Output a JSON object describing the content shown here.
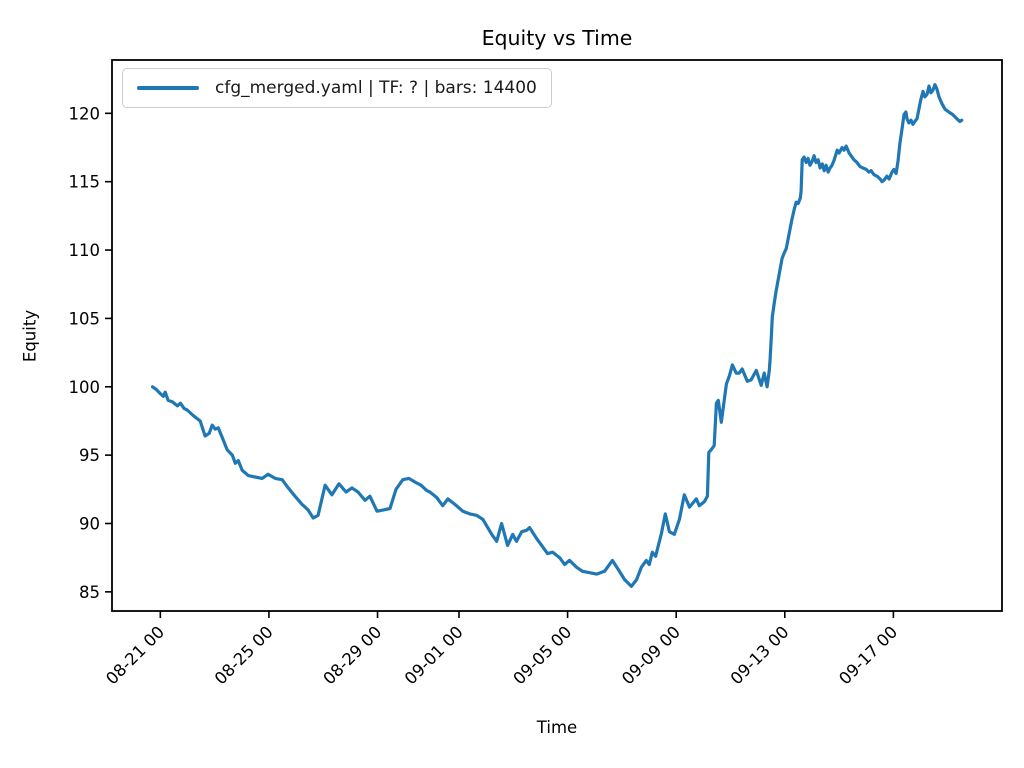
{
  "figure": {
    "background": "#ffffff"
  },
  "chart_data": {
    "type": "line",
    "title": "Equity vs Time",
    "xlabel": "Time",
    "ylabel": "Equity",
    "grid": false,
    "x_unit": "days since 08-21 00:00",
    "xlim": [
      -1.78,
      31.0
    ],
    "ylim": [
      83.6,
      123.9
    ],
    "y_ticks": [
      85,
      90,
      95,
      100,
      105,
      110,
      115,
      120
    ],
    "x_ticks": [
      {
        "pos": 0,
        "label": "08-21 00"
      },
      {
        "pos": 4,
        "label": "08-25 00"
      },
      {
        "pos": 8,
        "label": "08-29 00"
      },
      {
        "pos": 11,
        "label": "09-01 00"
      },
      {
        "pos": 15,
        "label": "09-05 00"
      },
      {
        "pos": 19,
        "label": "09-09 00"
      },
      {
        "pos": 23,
        "label": "09-13 00"
      },
      {
        "pos": 27,
        "label": "09-17 00"
      }
    ],
    "legend": {
      "position": "upper left",
      "label": "cfg_merged.yaml | TF: ? | bars: 14400"
    },
    "series": [
      {
        "name": "cfg_merged.yaml | TF: ? | bars: 14400",
        "color": "#1f77b4",
        "points": [
          [
            -0.29,
            100.0
          ],
          [
            -0.15,
            99.8
          ],
          [
            0,
            99.5
          ],
          [
            0.11,
            99.3
          ],
          [
            0.18,
            99.6
          ],
          [
            0.29,
            99.0
          ],
          [
            0.44,
            98.9
          ],
          [
            0.63,
            98.6
          ],
          [
            0.74,
            98.8
          ],
          [
            0.88,
            98.4
          ],
          [
            0.99,
            98.3
          ],
          [
            1.21,
            97.9
          ],
          [
            1.47,
            97.5
          ],
          [
            1.65,
            96.4
          ],
          [
            1.8,
            96.6
          ],
          [
            1.91,
            97.2
          ],
          [
            2.02,
            96.9
          ],
          [
            2.13,
            97.0
          ],
          [
            2.28,
            96.3
          ],
          [
            2.46,
            95.4
          ],
          [
            2.65,
            95.0
          ],
          [
            2.76,
            94.4
          ],
          [
            2.87,
            94.6
          ],
          [
            3.01,
            93.9
          ],
          [
            3.24,
            93.5
          ],
          [
            3.49,
            93.4
          ],
          [
            3.75,
            93.3
          ],
          [
            3.97,
            93.6
          ],
          [
            4.23,
            93.3
          ],
          [
            4.49,
            93.2
          ],
          [
            4.71,
            92.6
          ],
          [
            4.96,
            92.0
          ],
          [
            5.22,
            91.4
          ],
          [
            5.44,
            91.0
          ],
          [
            5.63,
            90.4
          ],
          [
            5.81,
            90.6
          ],
          [
            6.07,
            92.8
          ],
          [
            6.32,
            92.1
          ],
          [
            6.58,
            92.9
          ],
          [
            6.84,
            92.3
          ],
          [
            7.06,
            92.6
          ],
          [
            7.28,
            92.3
          ],
          [
            7.54,
            91.7
          ],
          [
            7.72,
            92.0
          ],
          [
            7.98,
            90.9
          ],
          [
            8.24,
            91.0
          ],
          [
            8.46,
            91.1
          ],
          [
            8.68,
            92.5
          ],
          [
            8.93,
            93.2
          ],
          [
            9.15,
            93.3
          ],
          [
            9.41,
            93.0
          ],
          [
            9.6,
            92.8
          ],
          [
            9.82,
            92.4
          ],
          [
            9.93,
            92.3
          ],
          [
            10.18,
            91.9
          ],
          [
            10.4,
            91.3
          ],
          [
            10.59,
            91.8
          ],
          [
            10.85,
            91.4
          ],
          [
            11.14,
            90.9
          ],
          [
            11.4,
            90.7
          ],
          [
            11.65,
            90.6
          ],
          [
            11.88,
            90.3
          ],
          [
            12.21,
            89.2
          ],
          [
            12.39,
            88.7
          ],
          [
            12.57,
            90.0
          ],
          [
            12.79,
            88.4
          ],
          [
            12.98,
            89.2
          ],
          [
            13.12,
            88.7
          ],
          [
            13.31,
            89.4
          ],
          [
            13.49,
            89.5
          ],
          [
            13.6,
            89.7
          ],
          [
            13.86,
            88.9
          ],
          [
            14.08,
            88.3
          ],
          [
            14.26,
            87.8
          ],
          [
            14.45,
            87.9
          ],
          [
            14.71,
            87.5
          ],
          [
            14.89,
            87.0
          ],
          [
            15.07,
            87.3
          ],
          [
            15.33,
            86.8
          ],
          [
            15.55,
            86.5
          ],
          [
            15.81,
            86.4
          ],
          [
            16.07,
            86.3
          ],
          [
            16.36,
            86.5
          ],
          [
            16.65,
            87.3
          ],
          [
            16.91,
            86.5
          ],
          [
            17.1,
            85.9
          ],
          [
            17.35,
            85.4
          ],
          [
            17.54,
            85.9
          ],
          [
            17.72,
            86.8
          ],
          [
            17.9,
            87.3
          ],
          [
            18.01,
            87.0
          ],
          [
            18.12,
            87.9
          ],
          [
            18.24,
            87.6
          ],
          [
            18.46,
            89.3
          ],
          [
            18.6,
            90.7
          ],
          [
            18.75,
            89.4
          ],
          [
            18.93,
            89.2
          ],
          [
            19.12,
            90.3
          ],
          [
            19.3,
            92.1
          ],
          [
            19.49,
            91.2
          ],
          [
            19.74,
            91.8
          ],
          [
            19.85,
            91.3
          ],
          [
            20.04,
            91.6
          ],
          [
            20.15,
            92.0
          ],
          [
            20.2,
            95.2
          ],
          [
            20.29,
            95.4
          ],
          [
            20.4,
            95.7
          ],
          [
            20.48,
            98.8
          ],
          [
            20.55,
            99.0
          ],
          [
            20.66,
            97.4
          ],
          [
            20.85,
            100.2
          ],
          [
            20.96,
            100.8
          ],
          [
            21.07,
            101.6
          ],
          [
            21.21,
            101.0
          ],
          [
            21.32,
            101.0
          ],
          [
            21.43,
            101.3
          ],
          [
            21.62,
            100.4
          ],
          [
            21.76,
            100.5
          ],
          [
            21.95,
            101.2
          ],
          [
            22.13,
            100.1
          ],
          [
            22.24,
            101.0
          ],
          [
            22.35,
            100.0
          ],
          [
            22.43,
            101.2
          ],
          [
            22.46,
            102.0
          ],
          [
            22.5,
            103.5
          ],
          [
            22.54,
            105.1
          ],
          [
            22.61,
            106.1
          ],
          [
            22.68,
            107.0
          ],
          [
            22.79,
            108.2
          ],
          [
            22.9,
            109.4
          ],
          [
            22.98,
            109.8
          ],
          [
            23.05,
            110.1
          ],
          [
            23.12,
            110.8
          ],
          [
            23.2,
            111.6
          ],
          [
            23.27,
            112.3
          ],
          [
            23.35,
            113.0
          ],
          [
            23.42,
            113.5
          ],
          [
            23.49,
            113.4
          ],
          [
            23.57,
            113.8
          ],
          [
            23.6,
            114.3
          ],
          [
            23.64,
            116.6
          ],
          [
            23.71,
            116.8
          ],
          [
            23.79,
            116.4
          ],
          [
            23.86,
            116.7
          ],
          [
            23.93,
            116.2
          ],
          [
            24.01,
            116.5
          ],
          [
            24.08,
            116.9
          ],
          [
            24.15,
            116.4
          ],
          [
            24.23,
            116.6
          ],
          [
            24.3,
            116.0
          ],
          [
            24.38,
            116.3
          ],
          [
            24.45,
            115.8
          ],
          [
            24.52,
            116.2
          ],
          [
            24.6,
            115.7
          ],
          [
            24.67,
            116.0
          ],
          [
            24.74,
            116.2
          ],
          [
            24.82,
            116.6
          ],
          [
            24.93,
            117.3
          ],
          [
            25.0,
            117.1
          ],
          [
            25.11,
            117.5
          ],
          [
            25.18,
            117.3
          ],
          [
            25.26,
            117.6
          ],
          [
            25.37,
            117.1
          ],
          [
            25.44,
            116.9
          ],
          [
            25.55,
            116.6
          ],
          [
            25.66,
            116.4
          ],
          [
            25.77,
            116.1
          ],
          [
            25.88,
            116.0
          ],
          [
            26.0,
            115.9
          ],
          [
            26.1,
            115.7
          ],
          [
            26.18,
            115.8
          ],
          [
            26.29,
            115.5
          ],
          [
            26.4,
            115.4
          ],
          [
            26.51,
            115.2
          ],
          [
            26.58,
            115.0
          ],
          [
            26.65,
            115.1
          ],
          [
            26.76,
            115.4
          ],
          [
            26.84,
            115.2
          ],
          [
            26.95,
            115.7
          ],
          [
            27.02,
            115.9
          ],
          [
            27.1,
            115.6
          ],
          [
            27.17,
            116.5
          ],
          [
            27.24,
            117.8
          ],
          [
            27.32,
            118.9
          ],
          [
            27.39,
            119.9
          ],
          [
            27.46,
            120.1
          ],
          [
            27.5,
            119.6
          ],
          [
            27.57,
            119.3
          ],
          [
            27.65,
            119.5
          ],
          [
            27.72,
            119.2
          ],
          [
            27.79,
            119.4
          ],
          [
            27.87,
            119.6
          ],
          [
            27.94,
            120.3
          ],
          [
            28.01,
            121.0
          ],
          [
            28.09,
            121.6
          ],
          [
            28.16,
            121.2
          ],
          [
            28.24,
            121.4
          ],
          [
            28.31,
            122.0
          ],
          [
            28.38,
            121.5
          ],
          [
            28.46,
            121.7
          ],
          [
            28.53,
            122.1
          ],
          [
            28.6,
            121.8
          ],
          [
            28.68,
            121.2
          ],
          [
            28.79,
            120.7
          ],
          [
            28.9,
            120.3
          ],
          [
            29.04,
            120.1
          ],
          [
            29.19,
            119.9
          ],
          [
            29.34,
            119.6
          ],
          [
            29.45,
            119.4
          ],
          [
            29.52,
            119.5
          ]
        ]
      }
    ]
  }
}
